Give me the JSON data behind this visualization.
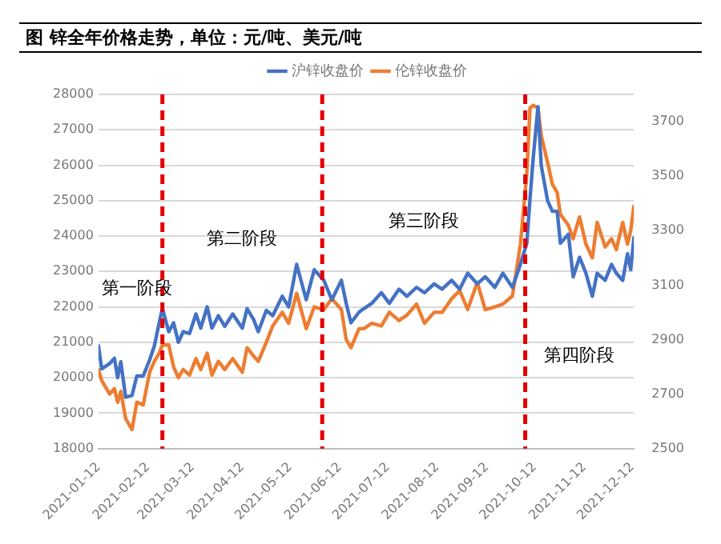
{
  "chart_data": {
    "type": "line",
    "title": "图  锌全年价格走势，单位：元/吨、美元/吨",
    "x": [
      "2021-01-12",
      "2021-01-14",
      "2021-01-19",
      "2021-01-22",
      "2021-01-24",
      "2021-01-26",
      "2021-01-29",
      "2021-02-02",
      "2021-02-05",
      "2021-02-09",
      "2021-02-13",
      "2021-02-16",
      "2021-02-19",
      "2021-02-21",
      "2021-02-25",
      "2021-02-28",
      "2021-03-03",
      "2021-03-06",
      "2021-03-10",
      "2021-03-14",
      "2021-03-17",
      "2021-03-21",
      "2021-03-24",
      "2021-03-28",
      "2021-04-01",
      "2021-04-06",
      "2021-04-12",
      "2021-04-15",
      "2021-04-19",
      "2021-04-22",
      "2021-04-27",
      "2021-05-01",
      "2021-05-07",
      "2021-05-11",
      "2021-05-16",
      "2021-05-22",
      "2021-05-27",
      "2021-06-02",
      "2021-06-07",
      "2021-06-13",
      "2021-06-16",
      "2021-06-19",
      "2021-06-24",
      "2021-06-27",
      "2021-07-02",
      "2021-07-08",
      "2021-07-13",
      "2021-07-19",
      "2021-07-24",
      "2021-07-30",
      "2021-08-04",
      "2021-08-10",
      "2021-08-15",
      "2021-08-21",
      "2021-08-26",
      "2021-08-31",
      "2021-09-06",
      "2021-09-11",
      "2021-09-17",
      "2021-09-22",
      "2021-09-28",
      "2021-10-03",
      "2021-10-07",
      "2021-10-09",
      "2021-10-11",
      "2021-10-14",
      "2021-10-16",
      "2021-10-20",
      "2021-10-23",
      "2021-10-26",
      "2021-10-28",
      "2021-11-02",
      "2021-11-05",
      "2021-11-09",
      "2021-11-13",
      "2021-11-17",
      "2021-11-20",
      "2021-11-25",
      "2021-11-29",
      "2021-12-02",
      "2021-12-06",
      "2021-12-09",
      "2021-12-11",
      "2021-12-13"
    ],
    "series": [
      {
        "name": "沪锌收盘价",
        "color": "#4472c4",
        "values": [
          20900,
          20250,
          20400,
          20550,
          20000,
          20450,
          19450,
          19500,
          20050,
          20050,
          20500,
          20900,
          21550,
          21950,
          21300,
          21550,
          21000,
          21300,
          21250,
          21800,
          21400,
          22000,
          21400,
          21750,
          21450,
          21800,
          21400,
          21950,
          21650,
          21300,
          21900,
          21750,
          22300,
          22000,
          23200,
          22200,
          23050,
          22750,
          22200,
          22750,
          22100,
          21550,
          21850,
          21950,
          22100,
          22400,
          22100,
          22500,
          22300,
          22550,
          22400,
          22650,
          22500,
          22750,
          22500,
          22950,
          22650,
          22850,
          22550,
          22950,
          22550,
          23200,
          23800,
          25050,
          26200,
          27650,
          26000,
          25000,
          24700,
          24700,
          23800,
          24050,
          22850,
          23400,
          22950,
          22300,
          22950,
          22750,
          23200,
          22950,
          22750,
          23500,
          23050,
          23950
        ]
      },
      {
        "name": "伦锌收盘价",
        "color": "#ed7d31",
        "axis": "y2",
        "values": [
          2790,
          2750,
          2700,
          2720,
          2670,
          2710,
          2610,
          2570,
          2670,
          2660,
          2780,
          2820,
          2850,
          2880,
          2880,
          2800,
          2760,
          2790,
          2770,
          2830,
          2790,
          2850,
          2770,
          2820,
          2790,
          2830,
          2780,
          2870,
          2840,
          2820,
          2890,
          2950,
          3000,
          2960,
          3070,
          2940,
          3020,
          3010,
          3050,
          3010,
          2900,
          2870,
          2940,
          2940,
          2960,
          2950,
          3000,
          2970,
          2990,
          3030,
          2960,
          3000,
          3000,
          3050,
          3080,
          3010,
          3110,
          3010,
          3020,
          3030,
          3060,
          3250,
          3510,
          3750,
          3760,
          3750,
          3650,
          3550,
          3470,
          3440,
          3360,
          3320,
          3270,
          3350,
          3250,
          3200,
          3330,
          3240,
          3270,
          3230,
          3330,
          3250,
          3300,
          3390
        ]
      }
    ],
    "xlim": [
      "2021-01-12",
      "2021-12-13"
    ],
    "xticks": [
      "2021-01-12",
      "2021-02-12",
      "2021-03-12",
      "2021-04-12",
      "2021-05-12",
      "2021-06-12",
      "2021-07-12",
      "2021-08-12",
      "2021-09-12",
      "2021-10-12",
      "2021-11-12",
      "2021-12-12"
    ],
    "ylim": [
      18000,
      28000
    ],
    "yticks": [
      18000,
      19000,
      20000,
      21000,
      22000,
      23000,
      24000,
      25000,
      26000,
      27000,
      28000
    ],
    "y2lim": [
      2500,
      3800
    ],
    "y2ticks": [
      2500,
      2700,
      2900,
      3100,
      3300,
      3500,
      3700
    ],
    "grid": "y",
    "legend": "top",
    "marker": "none",
    "line_style": "solid",
    "ref_lines": [
      {
        "axis": "x",
        "value": "2021-02-21",
        "color": "#e00000",
        "line_style": "dashed"
      },
      {
        "axis": "x",
        "value": "2021-06-01",
        "color": "#e00000",
        "line_style": "dashed"
      },
      {
        "axis": "x",
        "value": "2021-10-06",
        "color": "#e00000",
        "line_style": "dashed"
      }
    ],
    "annotations": [
      "第一阶段",
      "第二阶段",
      "第三阶段",
      "第四阶段"
    ]
  }
}
